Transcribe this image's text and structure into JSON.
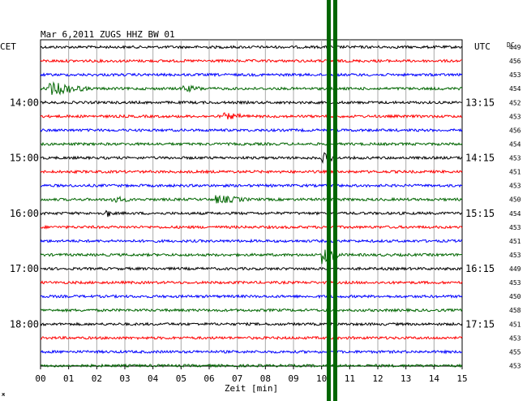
{
  "header": {
    "title": "Mar 6,2011   ZUGS HHZ BW 01",
    "left_tz": "CET",
    "right_tz": "UTC",
    "dc_label": "DC"
  },
  "x_axis": {
    "label": "Zeit [min]",
    "ticks": [
      "00",
      "01",
      "02",
      "03",
      "04",
      "05",
      "06",
      "07",
      "08",
      "09",
      "10",
      "11",
      "12",
      "13",
      "14",
      "15"
    ]
  },
  "left_time_labels": [
    {
      "row": 4,
      "text": "14:00"
    },
    {
      "row": 8,
      "text": "15:00"
    },
    {
      "row": 12,
      "text": "16:00"
    },
    {
      "row": 16,
      "text": "17:00"
    },
    {
      "row": 20,
      "text": "18:00"
    }
  ],
  "right_time_labels": [
    {
      "row": 4,
      "text": "13:15"
    },
    {
      "row": 8,
      "text": "14:15"
    },
    {
      "row": 12,
      "text": "15:15"
    },
    {
      "row": 16,
      "text": "16:15"
    },
    {
      "row": 20,
      "text": "17:15"
    }
  ],
  "dc_values": [
    "449",
    "456",
    "453",
    "454",
    "452",
    "453",
    "456",
    "454",
    "453",
    "451",
    "453",
    "450",
    "454",
    "453",
    "451",
    "453",
    "449",
    "453",
    "450",
    "458",
    "451",
    "453",
    "455",
    "453"
  ],
  "trace_colors": [
    "#000000",
    "#ff0000",
    "#0000ff",
    "#006600"
  ],
  "footer_mark": "ж",
  "events": [
    {
      "row": 3,
      "minute": 0.3,
      "duration": 1.5,
      "amplitude": 7
    },
    {
      "row": 3,
      "minute": 5.0,
      "duration": 1.0,
      "amplitude": 3
    },
    {
      "row": 5,
      "minute": 6.5,
      "duration": 1.0,
      "amplitude": 3
    },
    {
      "row": 11,
      "minute": 2.5,
      "duration": 0.8,
      "amplitude": 3
    },
    {
      "row": 11,
      "minute": 6.2,
      "duration": 1.3,
      "amplitude": 4
    },
    {
      "row": 12,
      "minute": 2.3,
      "duration": 0.3,
      "amplitude": 5
    },
    {
      "row": 8,
      "minute": 10.0,
      "duration": 0.6,
      "amplitude": 6
    },
    {
      "row": 15,
      "minute": 10.0,
      "duration": 0.8,
      "amplitude": 10
    }
  ]
}
